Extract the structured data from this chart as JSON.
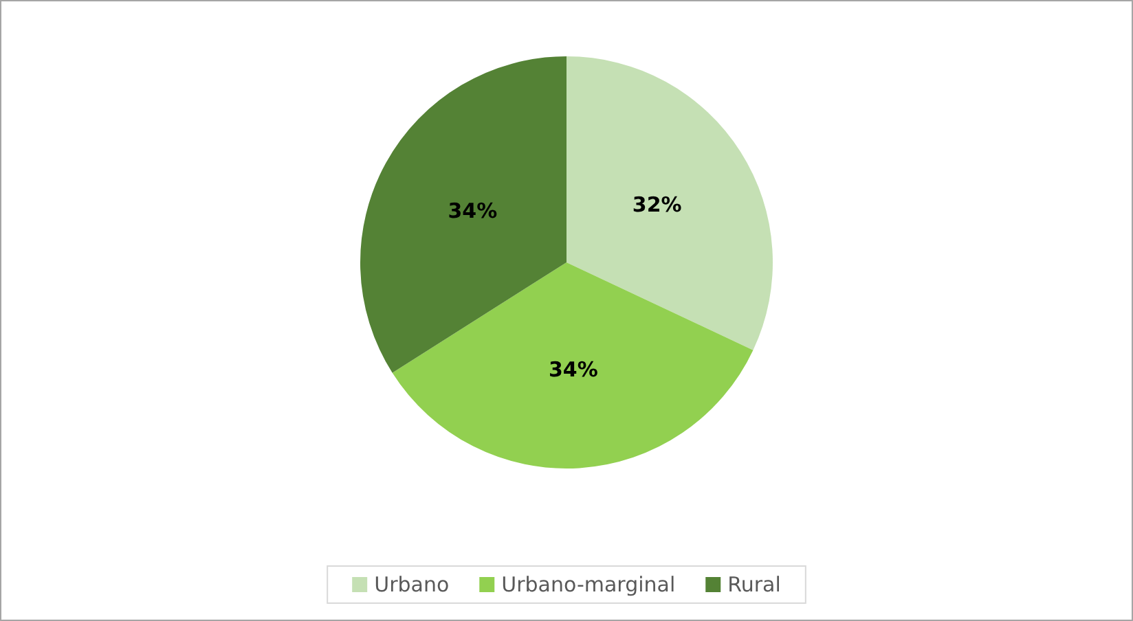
{
  "chart_data": {
    "type": "pie",
    "categories": [
      "Urbano",
      "Urbano-marginal",
      "Rural"
    ],
    "values": [
      32,
      34,
      34
    ],
    "colors": [
      "#c5e0b4",
      "#92d050",
      "#548235"
    ],
    "value_labels": [
      "32%",
      "34%",
      "34%"
    ],
    "legend": "bottom"
  }
}
